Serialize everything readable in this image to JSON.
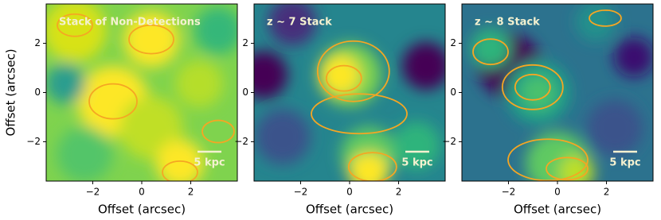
{
  "chart_data": [
    {
      "type": "image",
      "title": "Stack of Non-Detections",
      "xlabel": "Offset (arcsec)",
      "ylabel": "Offset (arcsec)",
      "xlim": [
        -3.9,
        3.9
      ],
      "ylim": [
        -3.6,
        3.6
      ],
      "xticks": [
        {
          "value": -2,
          "label": "−2"
        },
        0,
        2
      ],
      "yticks": [
        {
          "value": -2,
          "label": "−2"
        },
        0,
        2
      ],
      "scale_bar_label": "5 kpc"
    },
    {
      "type": "image",
      "title": "z ∼ 7 Stack",
      "xlabel": "Offset (arcsec)",
      "xlim": [
        -3.9,
        3.9
      ],
      "ylim": [
        -3.6,
        3.6
      ],
      "xticks": [
        {
          "value": -2,
          "label": "−2"
        },
        0,
        2
      ],
      "yticks": [
        {
          "value": -2,
          "label": "−2"
        },
        0,
        2
      ],
      "scale_bar_label": "5 kpc"
    },
    {
      "type": "image",
      "title": "z ∼ 8 Stack",
      "xlabel": "Offset (arcsec)",
      "xlim": [
        -3.9,
        3.9
      ],
      "ylim": [
        -3.6,
        3.6
      ],
      "xticks": [
        {
          "value": -2,
          "label": "−2"
        },
        0,
        2
      ],
      "yticks": [
        {
          "value": -2,
          "label": "−2"
        },
        0,
        2
      ],
      "scale_bar_label": "5 kpc"
    }
  ]
}
